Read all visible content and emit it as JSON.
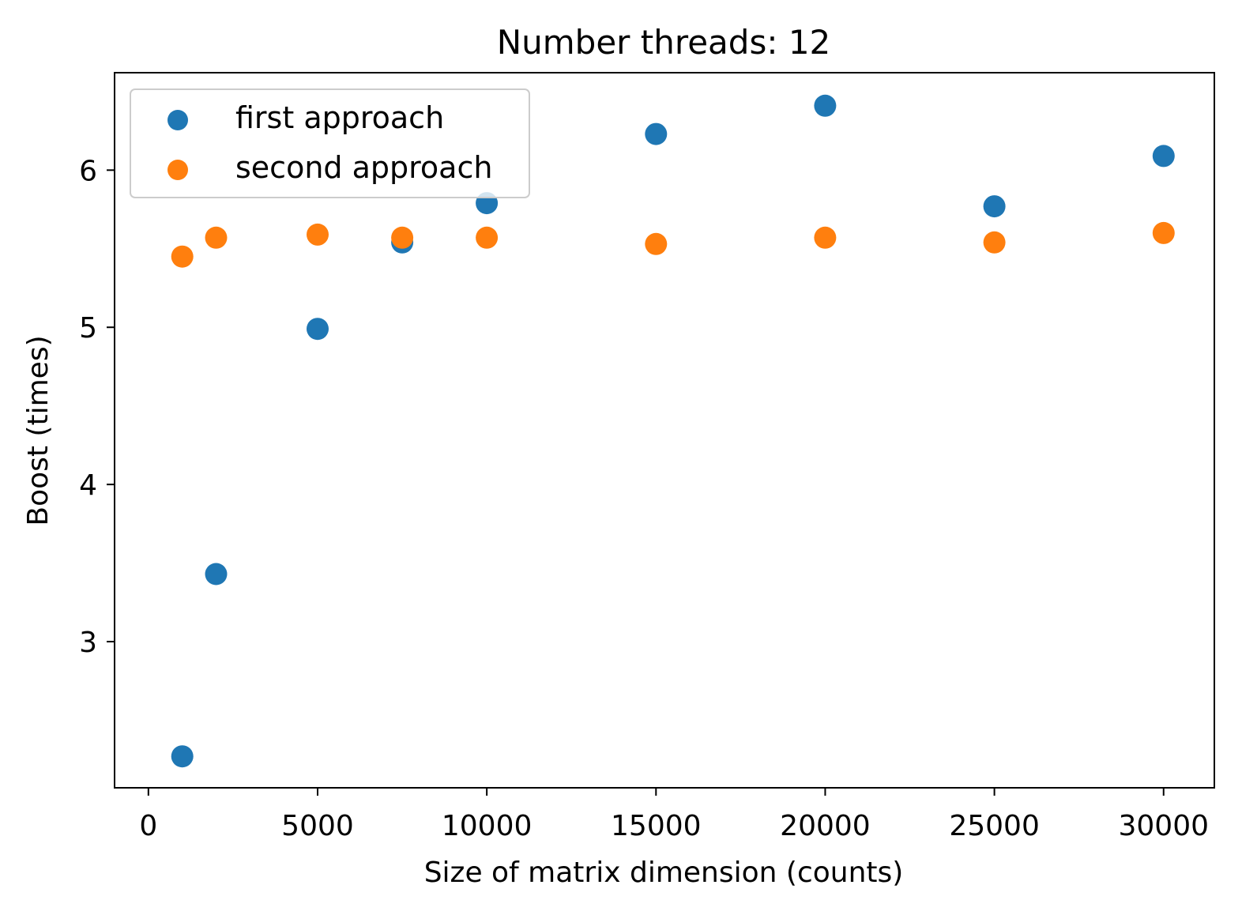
{
  "chart_data": {
    "type": "scatter",
    "title": "Number threads: 12",
    "xlabel": "Size of matrix dimension (counts)",
    "ylabel": "Boost (times)",
    "xlim": [
      -1000,
      31500
    ],
    "ylim": [
      2.07,
      6.62
    ],
    "xticks": [
      0,
      5000,
      10000,
      15000,
      20000,
      25000,
      30000
    ],
    "xtick_labels": [
      "0",
      "5000",
      "10000",
      "15000",
      "20000",
      "25000",
      "30000"
    ],
    "yticks": [
      3,
      4,
      5,
      6
    ],
    "ytick_labels": [
      "3",
      "4",
      "5",
      "6"
    ],
    "grid": false,
    "legend_position": "upper-left",
    "series": [
      {
        "name": "first approach",
        "color": "#1f77b4",
        "x": [
          1000,
          2000,
          5000,
          7500,
          10000,
          15000,
          20000,
          25000,
          30000
        ],
        "y": [
          2.27,
          3.43,
          4.99,
          5.54,
          5.79,
          6.23,
          6.41,
          5.77,
          6.09
        ]
      },
      {
        "name": "second approach",
        "color": "#ff7f0e",
        "x": [
          1000,
          2000,
          5000,
          7500,
          10000,
          15000,
          20000,
          25000,
          30000
        ],
        "y": [
          5.45,
          5.57,
          5.59,
          5.57,
          5.57,
          5.53,
          5.57,
          5.54,
          5.6
        ]
      }
    ]
  }
}
